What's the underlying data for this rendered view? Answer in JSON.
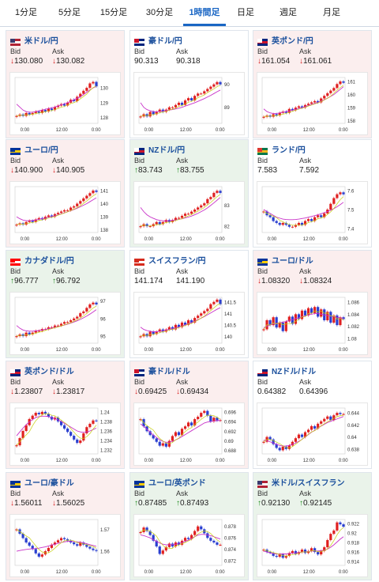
{
  "tabs": [
    {
      "label": "1分足",
      "active": false
    },
    {
      "label": "5分足",
      "active": false
    },
    {
      "label": "15分足",
      "active": false
    },
    {
      "label": "30分足",
      "active": false
    },
    {
      "label": "1時間足",
      "active": true
    },
    {
      "label": "日足",
      "active": false
    },
    {
      "label": "週足",
      "active": false
    },
    {
      "label": "月足",
      "active": false
    }
  ],
  "colors": {
    "up": "#1a8a1a",
    "down": "#d82020",
    "bull": "#2a3fd0",
    "bear": "#e02020",
    "ma1": "#c832c8",
    "ma2": "#c8d010",
    "tab_active": "#1a66c4"
  },
  "bid_label": "Bid",
  "ask_label": "Ask",
  "cards": [
    {
      "title": "米ドル/円",
      "flag": "us-jp",
      "bg": "pink",
      "bid": "130.080",
      "ask": "130.082",
      "dir": "down",
      "xticks": [
        "0:00",
        "12:00",
        "0:00"
      ],
      "yticks": [
        "130",
        "129",
        "128"
      ],
      "ymin": 127.6,
      "ymax": 130.7,
      "data": [
        128.1,
        128.2,
        128.1,
        128.3,
        128.2,
        128.3,
        128.4,
        128.3,
        128.5,
        128.4,
        128.6,
        128.5,
        128.7,
        128.8,
        128.9,
        128.8,
        129.0,
        129.2,
        129.1,
        129.4,
        129.6,
        129.8,
        130.0,
        130.3,
        130.4,
        130.1
      ],
      "ma1": [
        128.9,
        128.7,
        128.5,
        128.4,
        128.35,
        128.35,
        128.4,
        128.45,
        128.5,
        128.55,
        128.6,
        128.65,
        128.7,
        128.78,
        128.86,
        128.93,
        129.0,
        129.1,
        129.2,
        129.3,
        129.4,
        129.55,
        129.7,
        129.85,
        130.0,
        130.1
      ]
    },
    {
      "title": "豪ドル/円",
      "flag": "au-jp",
      "bg": "white",
      "bid": "90.313",
      "ask": "90.318",
      "dir": "none",
      "xticks": [
        "0:00",
        "12:00",
        "0:00"
      ],
      "yticks": [
        "90",
        "89"
      ],
      "ymin": 88.3,
      "ymax": 90.3,
      "data": [
        88.6,
        88.7,
        88.6,
        88.8,
        88.7,
        88.8,
        88.9,
        88.8,
        88.9,
        89.0,
        89.0,
        89.1,
        89.2,
        89.1,
        89.3,
        89.4,
        89.3,
        89.5,
        89.6,
        89.6,
        89.7,
        89.8,
        89.9,
        90.0,
        90.1,
        90.0
      ],
      "ma1": [
        89.2,
        89.0,
        88.9,
        88.85,
        88.82,
        88.8,
        88.82,
        88.84,
        88.86,
        88.88,
        88.9,
        88.93,
        88.96,
        89.0,
        89.05,
        89.1,
        89.15,
        89.2,
        89.26,
        89.32,
        89.38,
        89.45,
        89.52,
        89.6,
        89.68,
        89.75
      ]
    },
    {
      "title": "英ポンド/円",
      "flag": "gb-jp",
      "bg": "pink",
      "bid": "161.054",
      "ask": "161.061",
      "dir": "down",
      "xticks": [
        "0:00",
        "12:00",
        "0:00"
      ],
      "yticks": [
        "161",
        "160",
        "159",
        "158"
      ],
      "ymin": 157.8,
      "ymax": 161.3,
      "data": [
        158.3,
        158.4,
        158.3,
        158.5,
        158.4,
        158.6,
        158.7,
        158.6,
        158.9,
        158.8,
        159.0,
        159.1,
        159.0,
        159.2,
        159.3,
        159.4,
        159.5,
        159.4,
        159.7,
        159.9,
        160.1,
        160.3,
        160.5,
        160.8,
        161.0,
        160.9
      ],
      "ma1": [
        158.9,
        158.7,
        158.6,
        158.55,
        158.55,
        158.6,
        158.65,
        158.7,
        158.75,
        158.8,
        158.87,
        158.94,
        159.0,
        159.08,
        159.16,
        159.24,
        159.32,
        159.4,
        159.5,
        159.6,
        159.72,
        159.86,
        160.0,
        160.2,
        160.4,
        160.6
      ]
    },
    {
      "title": "ユーロ/円",
      "flag": "eu-jp",
      "bg": "pink",
      "bid": "140.900",
      "ask": "140.905",
      "dir": "down",
      "xticks": [
        "0:00",
        "12:00",
        "0:00"
      ],
      "yticks": [
        "141",
        "140",
        "139",
        "138"
      ],
      "ymin": 137.8,
      "ymax": 141.3,
      "data": [
        138.4,
        138.5,
        138.4,
        138.6,
        138.7,
        138.6,
        138.8,
        138.9,
        138.8,
        139.0,
        139.1,
        139.0,
        139.2,
        139.3,
        139.4,
        139.5,
        139.5,
        139.7,
        139.8,
        140.0,
        140.2,
        140.4,
        140.6,
        140.8,
        141.0,
        140.9
      ],
      "ma1": [
        139.0,
        138.85,
        138.75,
        138.7,
        138.7,
        138.72,
        138.75,
        138.8,
        138.85,
        138.9,
        138.96,
        139.02,
        139.08,
        139.15,
        139.22,
        139.3,
        139.38,
        139.46,
        139.55,
        139.65,
        139.76,
        139.88,
        140.0,
        140.15,
        140.3,
        140.45
      ]
    },
    {
      "title": "NZドル/円",
      "flag": "nz-jp",
      "bg": "green",
      "bid": "83.743",
      "ask": "83.755",
      "dir": "up",
      "xticks": [
        "0:00",
        "12:00",
        "0:00"
      ],
      "yticks": [
        "83",
        "82"
      ],
      "ymin": 81.7,
      "ymax": 83.9,
      "data": [
        82.0,
        82.1,
        82.0,
        82.0,
        82.1,
        82.2,
        82.1,
        82.2,
        82.3,
        82.2,
        82.3,
        82.4,
        82.4,
        82.5,
        82.6,
        82.6,
        82.7,
        82.8,
        82.9,
        83.0,
        83.1,
        83.3,
        83.4,
        83.6,
        83.7,
        83.6
      ],
      "ma1": [
        82.9,
        82.7,
        82.55,
        82.45,
        82.38,
        82.32,
        82.28,
        82.26,
        82.25,
        82.26,
        82.28,
        82.3,
        82.33,
        82.36,
        82.4,
        82.44,
        82.49,
        82.55,
        82.62,
        82.7,
        82.78,
        82.88,
        83.0,
        83.12,
        83.25,
        83.38
      ]
    },
    {
      "title": "ランド/円",
      "flag": "za-jp",
      "bg": "white",
      "bid": "7.583",
      "ask": "7.592",
      "dir": "none",
      "xticks": [
        "0:00",
        "12:00",
        "0:00"
      ],
      "yticks": [
        "7.6",
        "7.5",
        "7.4"
      ],
      "ymin": 7.38,
      "ymax": 7.62,
      "data": [
        7.49,
        7.47,
        7.46,
        7.44,
        7.43,
        7.42,
        7.43,
        7.42,
        7.41,
        7.41,
        7.42,
        7.43,
        7.42,
        7.44,
        7.45,
        7.44,
        7.46,
        7.47,
        7.46,
        7.48,
        7.5,
        7.53,
        7.56,
        7.58,
        7.59,
        7.58
      ],
      "ma1": [
        7.5,
        7.49,
        7.48,
        7.47,
        7.46,
        7.455,
        7.45,
        7.448,
        7.447,
        7.447,
        7.448,
        7.45,
        7.453,
        7.456,
        7.46,
        7.464,
        7.468,
        7.473,
        7.478,
        7.484,
        7.49,
        7.497,
        7.505,
        7.515,
        7.526,
        7.538
      ]
    },
    {
      "title": "カナダドル/円",
      "flag": "ca-jp",
      "bg": "green",
      "bid": "96.777",
      "ask": "96.792",
      "dir": "up",
      "xticks": [
        "0:00",
        "12:00",
        "0:00"
      ],
      "yticks": [
        "97",
        "96",
        "95"
      ],
      "ymin": 94.6,
      "ymax": 97.2,
      "data": [
        95.0,
        95.1,
        95.0,
        95.2,
        95.1,
        95.2,
        95.3,
        95.3,
        95.4,
        95.4,
        95.5,
        95.5,
        95.6,
        95.6,
        95.7,
        95.8,
        95.8,
        95.9,
        96.0,
        96.1,
        96.3,
        96.4,
        96.6,
        96.8,
        96.9,
        96.8
      ],
      "ma1": [
        95.6,
        95.45,
        95.35,
        95.3,
        95.28,
        95.28,
        95.3,
        95.32,
        95.35,
        95.38,
        95.42,
        95.46,
        95.5,
        95.54,
        95.58,
        95.63,
        95.68,
        95.74,
        95.8,
        95.87,
        95.95,
        96.04,
        96.14,
        96.25,
        96.37,
        96.5
      ]
    },
    {
      "title": "スイスフラン/円",
      "flag": "ch-jp",
      "bg": "white",
      "bid": "141.174",
      "ask": "141.190",
      "dir": "none",
      "xticks": [
        "0:00",
        "12:00",
        "0:00"
      ],
      "yticks": [
        "141.5",
        "141",
        "140.5",
        "140"
      ],
      "ymin": 139.7,
      "ymax": 141.7,
      "data": [
        140.0,
        140.1,
        140.0,
        140.2,
        140.1,
        140.2,
        140.3,
        140.2,
        140.3,
        140.4,
        140.3,
        140.5,
        140.4,
        140.6,
        140.5,
        140.7,
        140.6,
        140.8,
        140.9,
        141.0,
        141.1,
        141.2,
        141.4,
        141.5,
        141.6,
        141.4
      ],
      "ma1": [
        140.4,
        140.3,
        140.25,
        140.22,
        140.2,
        140.2,
        140.22,
        140.24,
        140.27,
        140.3,
        140.33,
        140.37,
        140.41,
        140.45,
        140.5,
        140.55,
        140.6,
        140.66,
        140.72,
        140.79,
        140.86,
        140.94,
        141.02,
        141.1,
        141.18,
        141.25
      ]
    },
    {
      "title": "ユーロ/ドル",
      "flag": "eu-us",
      "bg": "pink",
      "bid": "1.08320",
      "ask": "1.08324",
      "dir": "down",
      "xticks": [
        "0:00",
        "12:00",
        "0:00"
      ],
      "yticks": [
        "1.086",
        "1.084",
        "1.082",
        "1.08"
      ],
      "ymin": 1.0792,
      "ymax": 1.0868,
      "data": [
        1.0815,
        1.083,
        1.0822,
        1.0835,
        1.0818,
        1.0826,
        1.0812,
        1.0828,
        1.0836,
        1.0824,
        1.084,
        1.0832,
        1.0846,
        1.0838,
        1.085,
        1.0842,
        1.0852,
        1.0836,
        1.0848,
        1.083,
        1.0844,
        1.0826,
        1.0838,
        1.0822,
        1.0835,
        1.0832
      ],
      "ma1": [
        1.0818,
        1.082,
        1.0822,
        1.0824,
        1.0825,
        1.0826,
        1.0827,
        1.0828,
        1.083,
        1.0831,
        1.0833,
        1.0834,
        1.0836,
        1.0837,
        1.0839,
        1.084,
        1.0841,
        1.0841,
        1.084,
        1.0839,
        1.0838,
        1.0837,
        1.0836,
        1.0835,
        1.0834,
        1.0833
      ]
    },
    {
      "title": "英ポンド/ドル",
      "flag": "gb-us",
      "bg": "pink",
      "bid": "1.23807",
      "ask": "1.23817",
      "dir": "down",
      "xticks": [
        "0:00",
        "12:00",
        "0:00"
      ],
      "yticks": [
        "1.24",
        "1.238",
        "1.236",
        "1.234",
        "1.232"
      ],
      "ymin": 1.2312,
      "ymax": 1.2408,
      "data": [
        1.233,
        1.2345,
        1.236,
        1.2372,
        1.2385,
        1.2392,
        1.2398,
        1.2395,
        1.24,
        1.2396,
        1.239,
        1.2384,
        1.2388,
        1.238,
        1.2372,
        1.2365,
        1.2358,
        1.235,
        1.2342,
        1.2335,
        1.234,
        1.2355,
        1.2368,
        1.2375,
        1.2382,
        1.2381
      ],
      "ma1": [
        1.235,
        1.2358,
        1.2366,
        1.2373,
        1.2379,
        1.2384,
        1.2388,
        1.239,
        1.2391,
        1.2391,
        1.239,
        1.2388,
        1.2386,
        1.2383,
        1.238,
        1.2376,
        1.2372,
        1.2368,
        1.2364,
        1.236,
        1.2358,
        1.2357,
        1.2358,
        1.236,
        1.2363,
        1.2366
      ]
    },
    {
      "title": "豪ドル/ドル",
      "flag": "au-us",
      "bg": "pink",
      "bid": "0.69425",
      "ask": "0.69434",
      "dir": "down",
      "xticks": [
        "0:00",
        "12:00",
        "0:00"
      ],
      "yticks": [
        "0.696",
        "0.694",
        "0.692",
        "0.69",
        "0.688"
      ],
      "ymin": 0.6873,
      "ymax": 0.6968,
      "data": [
        0.6945,
        0.693,
        0.692,
        0.6912,
        0.6905,
        0.6898,
        0.689,
        0.6895,
        0.6888,
        0.69,
        0.691,
        0.6918,
        0.6912,
        0.6925,
        0.693,
        0.6938,
        0.6932,
        0.6945,
        0.695,
        0.6958,
        0.6962,
        0.6952,
        0.694,
        0.6948,
        0.6942,
        0.6943
      ],
      "ma1": [
        0.6935,
        0.693,
        0.6924,
        0.6918,
        0.6912,
        0.6907,
        0.6902,
        0.6899,
        0.6897,
        0.6897,
        0.6899,
        0.6902,
        0.6905,
        0.6909,
        0.6913,
        0.6917,
        0.6921,
        0.6925,
        0.6929,
        0.6933,
        0.6937,
        0.6939,
        0.694,
        0.6941,
        0.6942,
        0.6942
      ]
    },
    {
      "title": "NZドル/ドル",
      "flag": "nz-us",
      "bg": "white",
      "bid": "0.64382",
      "ask": "0.64396",
      "dir": "none",
      "xticks": [
        "0:00",
        "12:00",
        "0:00"
      ],
      "yticks": [
        "0.644",
        "0.642",
        "0.64",
        "0.638"
      ],
      "ymin": 0.6372,
      "ymax": 0.6448,
      "data": [
        0.6392,
        0.64,
        0.6396,
        0.6388,
        0.6382,
        0.6378,
        0.6384,
        0.638,
        0.6386,
        0.6392,
        0.6398,
        0.6404,
        0.64,
        0.6408,
        0.6412,
        0.6418,
        0.6414,
        0.6422,
        0.6426,
        0.643,
        0.6434,
        0.6428,
        0.6436,
        0.644,
        0.6438,
        0.6438
      ],
      "ma1": [
        0.6395,
        0.6394,
        0.6392,
        0.639,
        0.6388,
        0.6386,
        0.6385,
        0.6385,
        0.6386,
        0.6388,
        0.639,
        0.6393,
        0.6396,
        0.64,
        0.6404,
        0.6408,
        0.6411,
        0.6415,
        0.6418,
        0.6421,
        0.6424,
        0.6426,
        0.6428,
        0.643,
        0.6432,
        0.6434
      ]
    },
    {
      "title": "ユーロ/豪ドル",
      "flag": "eu-au",
      "bg": "pink",
      "bid": "1.56011",
      "ask": "1.56025",
      "dir": "down",
      "xticks": [
        "0:00",
        "12:00",
        "0:00"
      ],
      "yticks": [
        "1.57",
        "1.56"
      ],
      "ymin": 1.5535,
      "ymax": 1.5745,
      "data": [
        1.57,
        1.568,
        1.566,
        1.564,
        1.5625,
        1.561,
        1.559,
        1.5575,
        1.5585,
        1.56,
        1.5615,
        1.563,
        1.564,
        1.565,
        1.566,
        1.5655,
        1.5648,
        1.564,
        1.5632,
        1.5625,
        1.564,
        1.563,
        1.562,
        1.5612,
        1.5605,
        1.5601
      ],
      "ma1": [
        1.56,
        1.5603,
        1.5606,
        1.5608,
        1.561,
        1.5611,
        1.5612,
        1.5614,
        1.5617,
        1.562,
        1.5624,
        1.5628,
        1.5632,
        1.5636,
        1.564,
        1.5643,
        1.5645,
        1.5645,
        1.5644,
        1.5643,
        1.5641,
        1.5638,
        1.5634,
        1.563,
        1.5626,
        1.5622
      ]
    },
    {
      "title": "ユーロ/英ポンド",
      "flag": "eu-gb",
      "bg": "green",
      "bid": "0.87485",
      "ask": "0.87493",
      "dir": "up",
      "xticks": [
        "0:00",
        "12:00",
        "0:00"
      ],
      "yticks": [
        "0.878",
        "0.876",
        "0.874",
        "0.872"
      ],
      "ymin": 0.8712,
      "ymax": 0.8792,
      "data": [
        0.877,
        0.8778,
        0.8772,
        0.8765,
        0.8755,
        0.8745,
        0.8732,
        0.8738,
        0.8744,
        0.875,
        0.8745,
        0.8752,
        0.8748,
        0.8755,
        0.876,
        0.8758,
        0.8765,
        0.8772,
        0.878,
        0.8775,
        0.8768,
        0.876,
        0.8755,
        0.8752,
        0.8748,
        0.8748
      ],
      "ma1": [
        0.8765,
        0.8764,
        0.8762,
        0.876,
        0.8757,
        0.8754,
        0.8751,
        0.8749,
        0.8748,
        0.8748,
        0.8748,
        0.8749,
        0.875,
        0.8752,
        0.8754,
        0.8756,
        0.8759,
        0.8762,
        0.8765,
        0.8766,
        0.8766,
        0.8765,
        0.8764,
        0.8762,
        0.876,
        0.8758
      ]
    },
    {
      "title": "米ドル/スイスフラン",
      "flag": "us-ch",
      "bg": "green",
      "bid": "0.92130",
      "ask": "0.92145",
      "dir": "up",
      "xticks": [
        "0:00",
        "12:00",
        "0:00"
      ],
      "yticks": [
        "0.922",
        "0.92",
        "0.918",
        "0.916",
        "0.914"
      ],
      "ymin": 0.9132,
      "ymax": 0.9228,
      "data": [
        0.9165,
        0.916,
        0.9158,
        0.9152,
        0.915,
        0.9155,
        0.9148,
        0.9152,
        0.9158,
        0.9162,
        0.9156,
        0.916,
        0.9165,
        0.9158,
        0.9162,
        0.9168,
        0.916,
        0.9155,
        0.9162,
        0.917,
        0.9185,
        0.9198,
        0.9205,
        0.9222,
        0.9218,
        0.9213
      ],
      "ma1": [
        0.9162,
        0.916,
        0.9158,
        0.9157,
        0.9156,
        0.9156,
        0.9156,
        0.9156,
        0.9157,
        0.9158,
        0.9158,
        0.9159,
        0.916,
        0.916,
        0.9161,
        0.9162,
        0.9162,
        0.9162,
        0.9163,
        0.9164,
        0.9166,
        0.917,
        0.9175,
        0.9181,
        0.9187,
        0.9192
      ]
    }
  ]
}
